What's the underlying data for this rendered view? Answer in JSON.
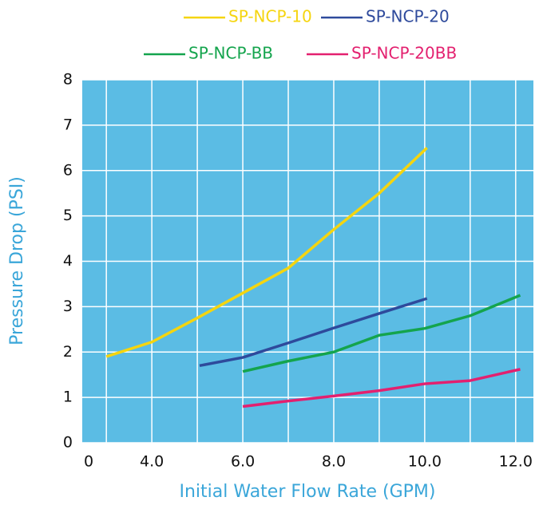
{
  "chart_data": {
    "type": "line",
    "x_label": "Initial Water Flow Rate (GPM)",
    "y_label": "Pressure Drop (PSI)",
    "xlim": [
      2.47,
      12.39
    ],
    "ylim": [
      0,
      8
    ],
    "xticks": [
      0,
      {
        "value": 4,
        "label": "4.0"
      },
      {
        "value": 6,
        "label": "6.0"
      },
      {
        "value": 8,
        "label": "8.0"
      },
      {
        "value": 10,
        "label": "10.0"
      },
      {
        "value": 12,
        "label": "12.0"
      }
    ],
    "x_axis_break": true,
    "x_gridlines": [
      3,
      4,
      5,
      6,
      7,
      8,
      9,
      10,
      11,
      12
    ],
    "yticks": [
      0,
      1,
      2,
      3,
      4,
      5,
      6,
      7,
      8
    ],
    "grid": true,
    "plot_background": "#5bbce4",
    "series": [
      {
        "name": "SP-NCP-10",
        "color": "#f5d50f",
        "x": [
          3,
          4,
          5,
          6,
          7,
          8,
          9,
          10.05
        ],
        "values": [
          1.9,
          2.22,
          2.75,
          3.3,
          3.85,
          4.7,
          5.5,
          6.5
        ]
      },
      {
        "name": "SP-NCP-20",
        "color": "#2e4a9c",
        "x": [
          5.05,
          6,
          7,
          8,
          9,
          10.05
        ],
        "values": [
          1.7,
          1.88,
          2.2,
          2.53,
          2.85,
          3.18
        ]
      },
      {
        "name": "SP-NCP-BB",
        "color": "#14a44d",
        "x": [
          6,
          7,
          8,
          9,
          10,
          11,
          12.1
        ],
        "values": [
          1.57,
          1.8,
          2.0,
          2.37,
          2.52,
          2.8,
          3.25
        ]
      },
      {
        "name": "SP-NCP-20BB",
        "color": "#e3206f",
        "x": [
          6,
          7,
          8,
          9,
          10,
          11,
          12.1
        ],
        "values": [
          0.8,
          0.92,
          1.03,
          1.15,
          1.3,
          1.37,
          1.62
        ]
      }
    ]
  }
}
